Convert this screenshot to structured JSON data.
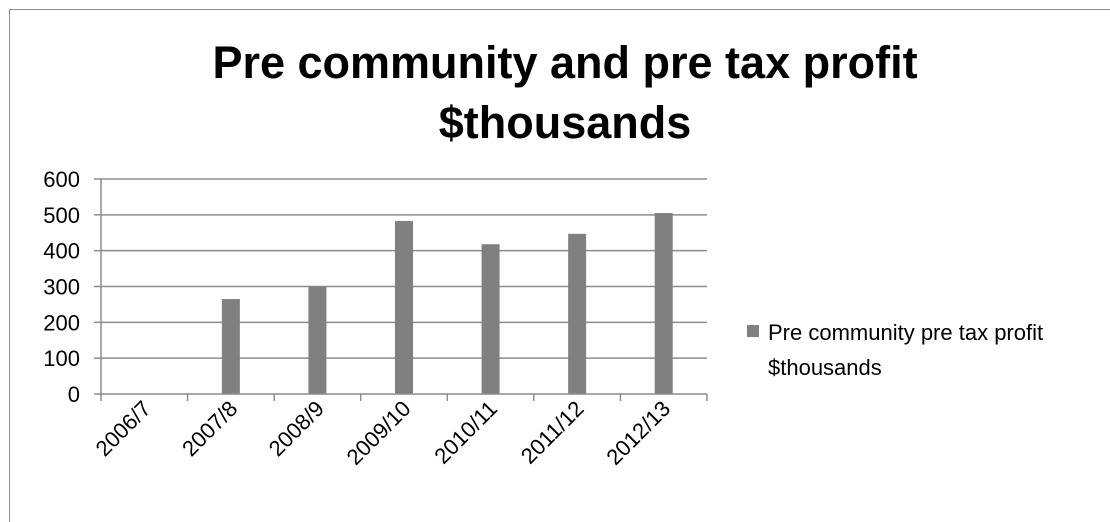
{
  "chart_data": {
    "type": "bar",
    "title_lines": [
      "Pre community and pre tax profit",
      "$thousands"
    ],
    "categories": [
      "2006/7",
      "2007/8",
      "2008/9",
      "2009/10",
      "2010/11",
      "2011/12",
      "2012/13"
    ],
    "series": [
      {
        "name_lines": [
          "Pre community pre tax profit",
          "$thousands"
        ],
        "values": [
          0,
          265,
          300,
          483,
          418,
          447,
          505
        ],
        "color": "#808080"
      }
    ],
    "xlabel": "",
    "ylabel": "",
    "ylim": [
      0,
      600
    ],
    "yticks": [
      "0",
      "100",
      "200",
      "300",
      "400",
      "500",
      "600"
    ],
    "grid": true,
    "legend_position": "right"
  }
}
